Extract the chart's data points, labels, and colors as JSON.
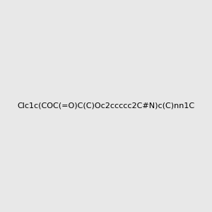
{
  "smiles": "Clc1c(COC(=O)C(C)Oc2ccccc2C#N)c(C)nn1C",
  "image_size": 300,
  "background_color": "#e8e8e8",
  "title": "",
  "atom_colors": {
    "N": "#0000FF",
    "O": "#FF0000",
    "Cl": "#00CC00",
    "C_special": "#0000FF"
  }
}
